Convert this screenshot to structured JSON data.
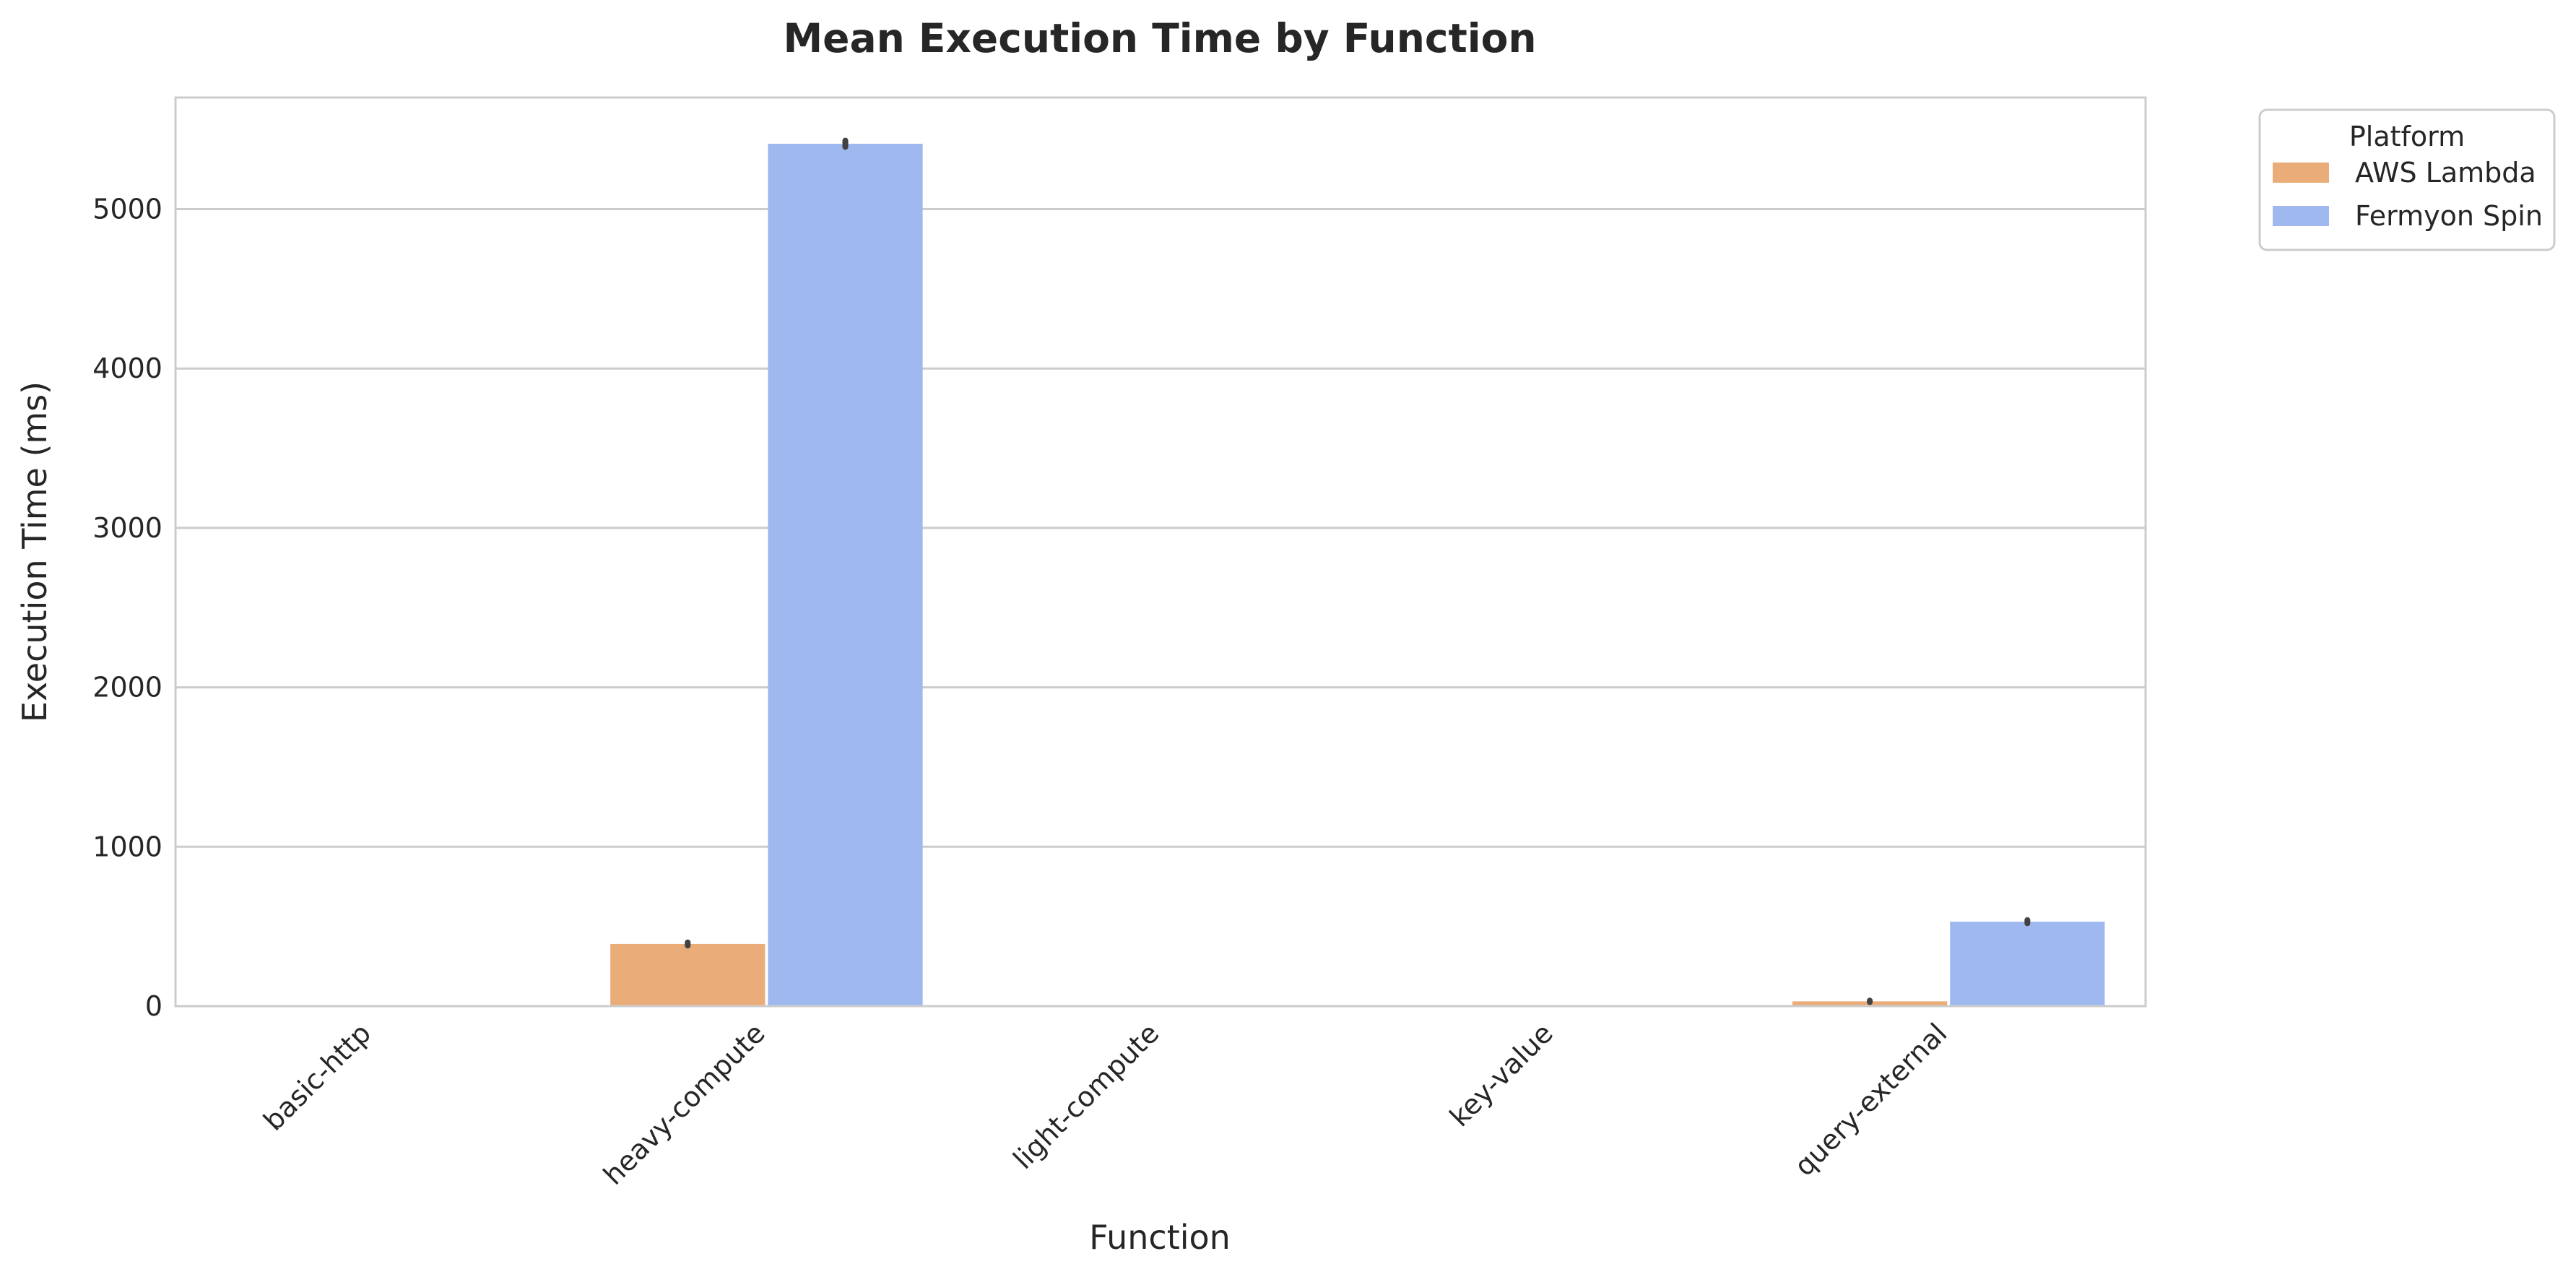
{
  "chart_data": {
    "type": "bar",
    "title": "Mean Execution Time by Function",
    "xlabel": "Function",
    "ylabel": "Execution Time (ms)",
    "categories": [
      "basic-http",
      "heavy-compute",
      "light-compute",
      "key-value",
      "query-external"
    ],
    "series": [
      {
        "name": "AWS Lambda",
        "color": "#eaac78",
        "values": [
          0,
          390,
          0,
          0,
          30
        ],
        "errors": [
          null,
          [
            380,
            400
          ],
          null,
          null,
          [
            25,
            35
          ]
        ]
      },
      {
        "name": "Fermyon Spin",
        "color": "#9fb8ef",
        "values": [
          0,
          5410,
          0,
          0,
          530
        ],
        "errors": [
          null,
          [
            5390,
            5430
          ],
          null,
          null,
          [
            520,
            540
          ]
        ]
      }
    ],
    "yticks": [
      0,
      1000,
      2000,
      3000,
      4000,
      5000
    ],
    "ylim": [
      0,
      5700
    ],
    "grid": true,
    "legend": {
      "title": "Platform",
      "position": "outside-top-right"
    }
  }
}
